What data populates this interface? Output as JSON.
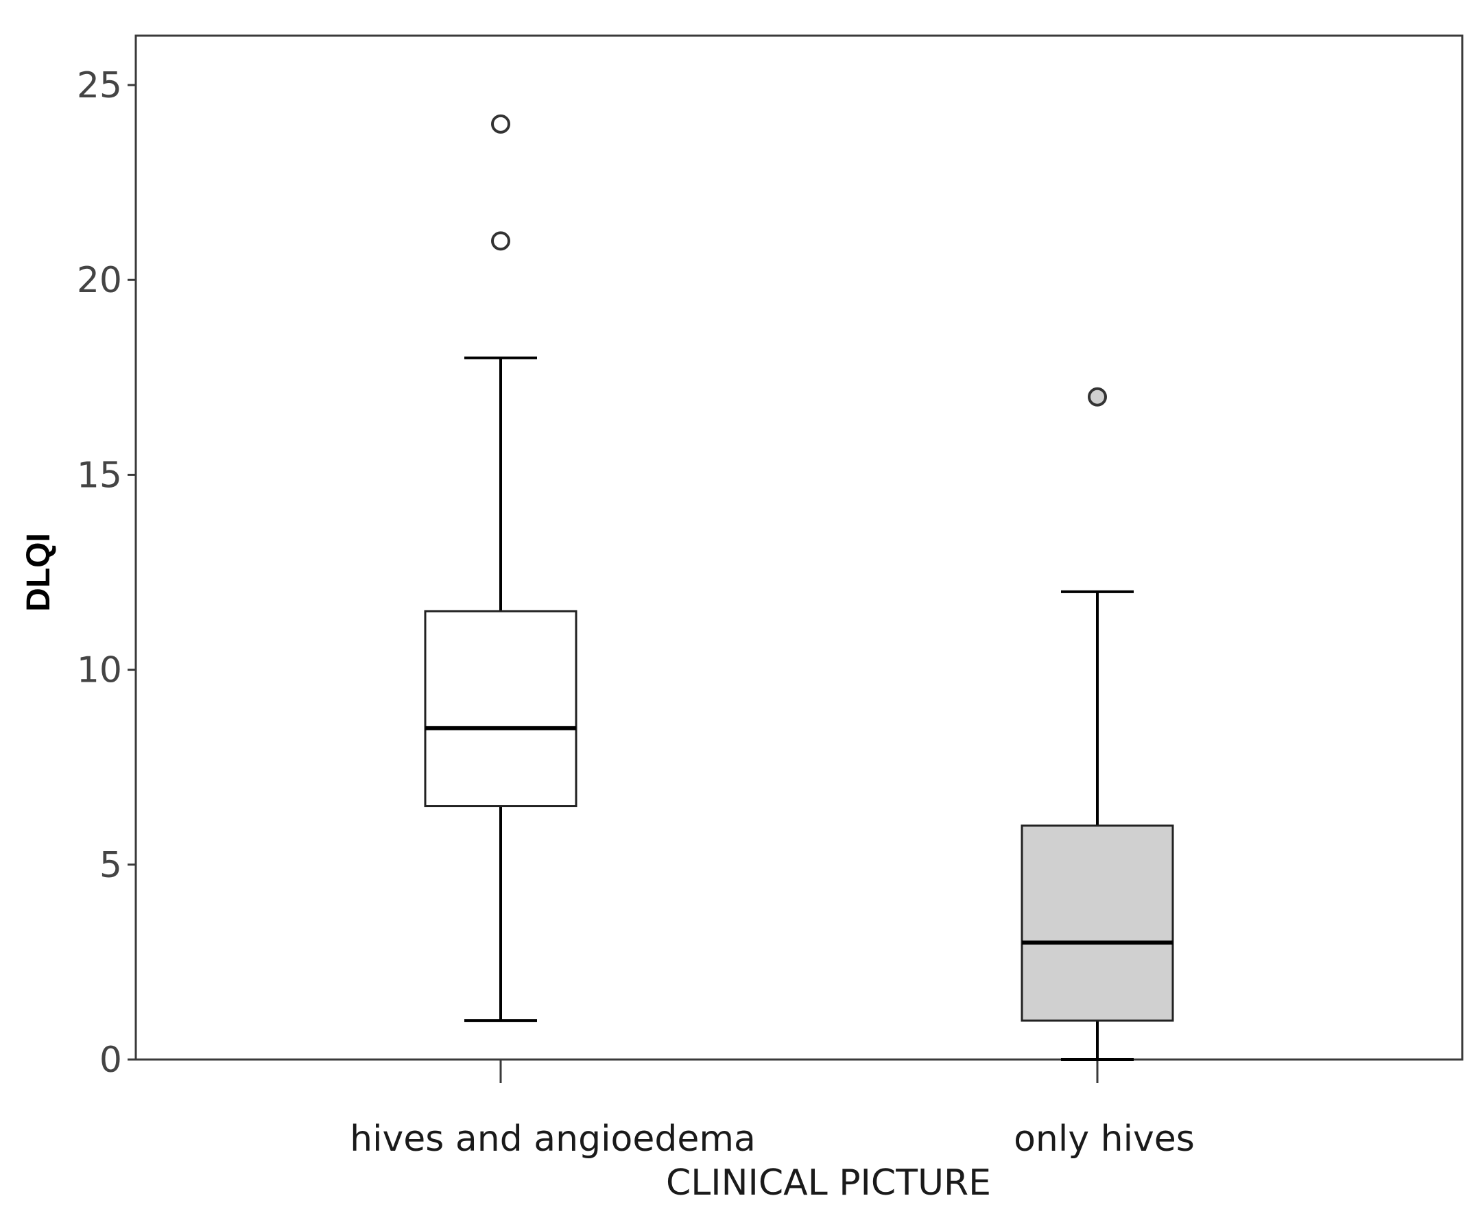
{
  "chart_data": {
    "type": "box",
    "xlabel": "CLINICAL PICTURE",
    "ylabel": "DLQI",
    "ylim": [
      0,
      25
    ],
    "yticks": [
      "0",
      "5",
      "10",
      "15",
      "20",
      "25"
    ],
    "grid": false,
    "categories": [
      "hives and angioedema",
      "only hives"
    ],
    "boxes": [
      {
        "category": "hives and angioedema",
        "whisker_low": 1,
        "q1": 6.5,
        "median": 8.5,
        "q3": 11.5,
        "whisker_high": 18,
        "outliers": [
          21,
          24
        ],
        "fill": "#ffffff"
      },
      {
        "category": "only hives",
        "whisker_low": 0,
        "q1": 1,
        "median": 3,
        "q3": 6,
        "whisker_high": 12,
        "outliers": [
          17
        ],
        "fill": "#d0d0d0"
      }
    ]
  }
}
